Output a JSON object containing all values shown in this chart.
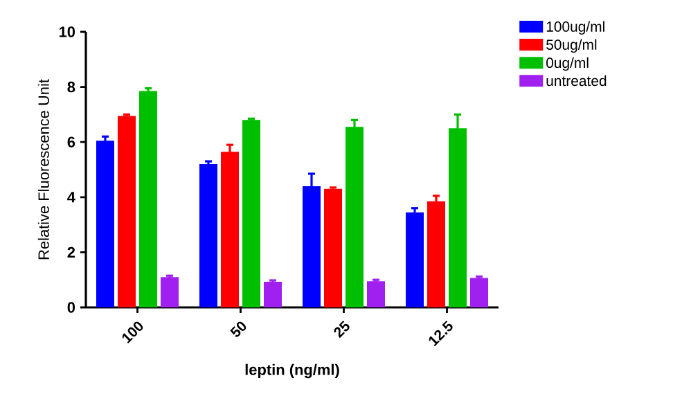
{
  "chart_data": {
    "type": "bar",
    "xlabel": "leptin (ng/ml)",
    "ylabel": "Relative Fluorescence Unit",
    "categories": [
      "100",
      "50",
      "25",
      "12.5"
    ],
    "ylim": [
      0,
      10
    ],
    "yticks": [
      0,
      2,
      4,
      6,
      8,
      10
    ],
    "legend": "right",
    "grid": false,
    "series": [
      {
        "name": "100ug/ml",
        "color": "#0000ff",
        "values": [
          6.05,
          5.2,
          4.4,
          3.45
        ],
        "errors": [
          0.15,
          0.1,
          0.45,
          0.15
        ]
      },
      {
        "name": "50ug/ml",
        "color": "#ff0000",
        "values": [
          6.95,
          5.65,
          4.3,
          3.85
        ],
        "errors": [
          0.05,
          0.25,
          0.05,
          0.2
        ]
      },
      {
        "name": "0ug/ml",
        "color": "#00bf00",
        "values": [
          7.85,
          6.8,
          6.55,
          6.5
        ],
        "errors": [
          0.1,
          0.05,
          0.25,
          0.5
        ]
      },
      {
        "name": "untreated",
        "color": "#a020f0",
        "values": [
          1.1,
          0.93,
          0.95,
          1.07
        ],
        "errors": [
          0.05,
          0.05,
          0.05,
          0.05
        ]
      }
    ]
  }
}
